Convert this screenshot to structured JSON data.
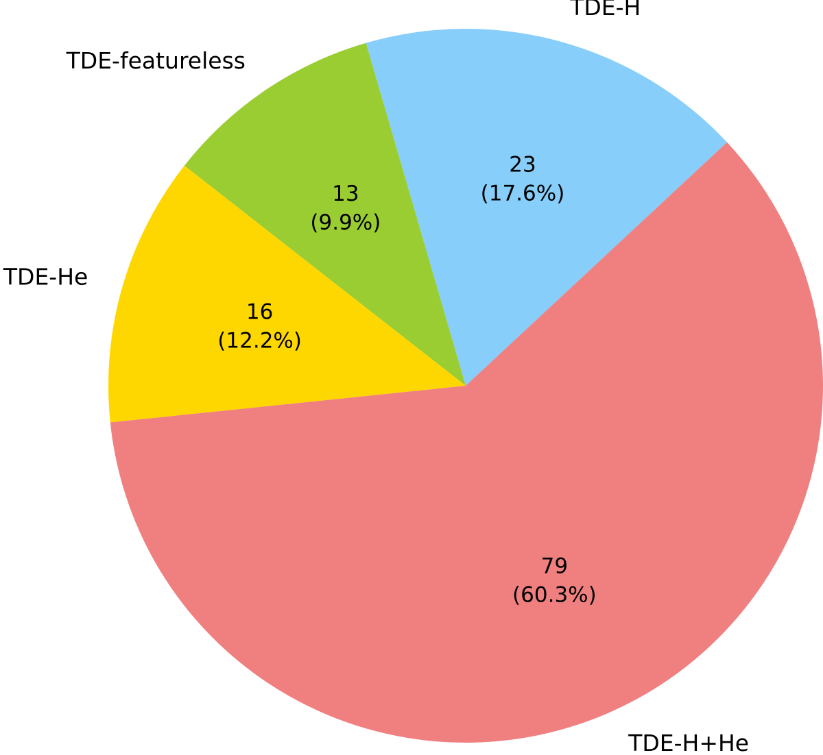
{
  "chart_data": {
    "type": "pie",
    "slices": [
      {
        "label": "TDE-H",
        "value": 23,
        "percent_label": "(17.6%)",
        "count_label": "23",
        "color": "#87cefa"
      },
      {
        "label": "TDE-featureless",
        "value": 13,
        "percent_label": "(9.9%)",
        "count_label": "13",
        "color": "#9acd32"
      },
      {
        "label": "TDE-He",
        "value": 16,
        "percent_label": "(12.2%)",
        "count_label": "16",
        "color": "#ffd700"
      },
      {
        "label": "TDE-H+He",
        "value": 79,
        "percent_label": "(60.3%)",
        "count_label": "79",
        "color": "#f08080"
      }
    ],
    "start_angle_deg": 43,
    "direction": "counterclockwise"
  }
}
